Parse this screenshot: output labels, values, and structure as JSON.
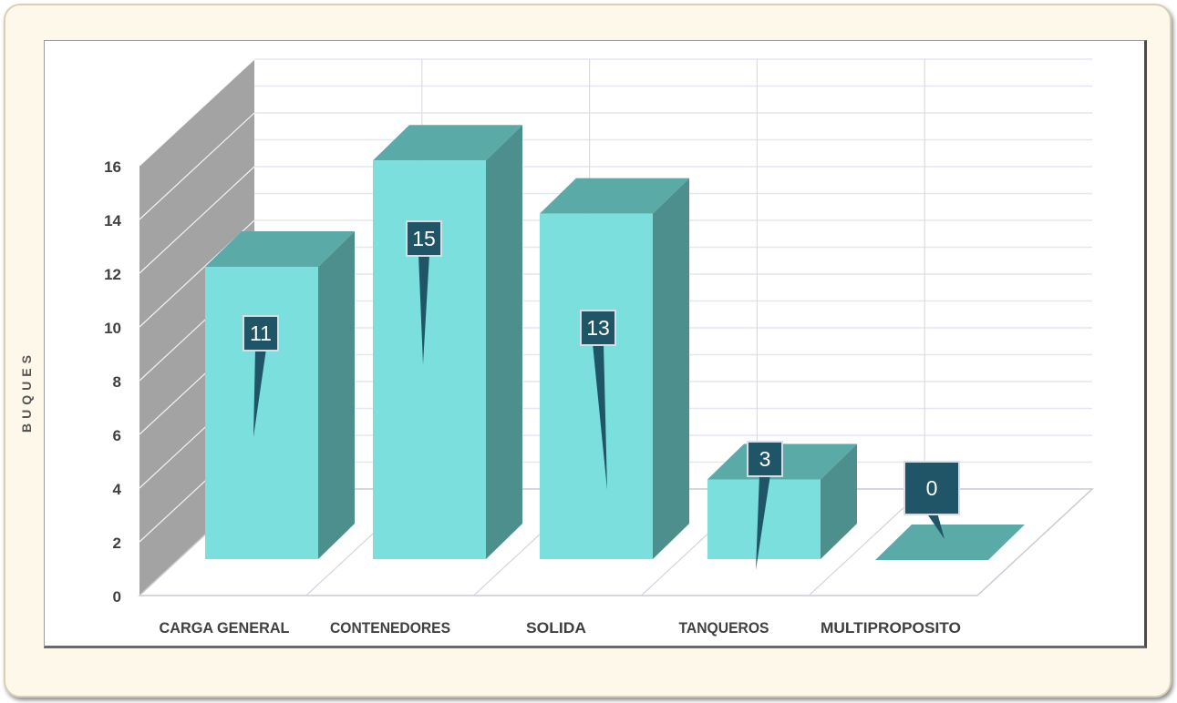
{
  "chart_data": {
    "type": "bar",
    "categories": [
      "CARGA GENERAL",
      "CONTENEDORES",
      "SOLIDA",
      "TANQUEROS",
      "MULTIPROPOSITO"
    ],
    "values": [
      11,
      15,
      13,
      3,
      0
    ],
    "data_labels": [
      "11",
      "15",
      "13",
      "3",
      "0"
    ],
    "ylabel": "BUQUES",
    "xlabel": "",
    "title": "",
    "ylim": [
      0,
      16
    ],
    "yticks": [
      "0",
      "2",
      "4",
      "6",
      "8",
      "10",
      "12",
      "14",
      "16"
    ],
    "grid": true,
    "style": "3d-column",
    "colors": {
      "bar_front": "#7adfdd",
      "bar_top": "#5aaaa8",
      "bar_side": "#4c8f8c",
      "data_label_bg": "#1f5566",
      "side_wall": "#a3a3a3",
      "frame_bg": "#fdf8ea"
    }
  }
}
